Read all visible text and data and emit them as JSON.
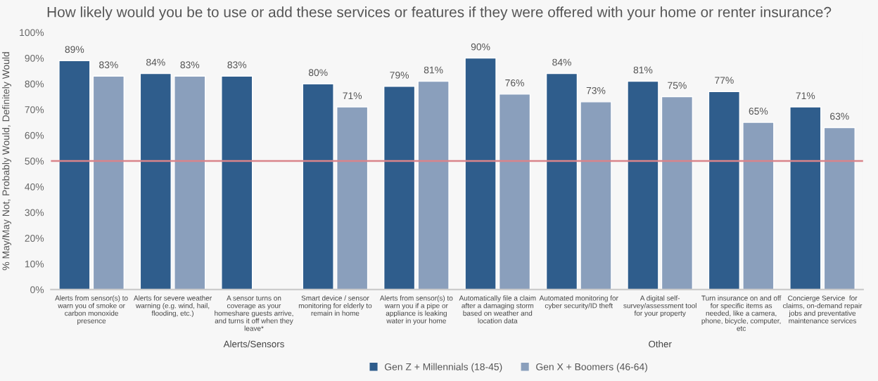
{
  "chart_data": {
    "type": "bar",
    "title": "How likely would you be to use or add these services or features if they were offered with your home or renter insurance?",
    "ylabel": "% May/May Not, Probably Would, Definitely Would",
    "categories": [
      "Alerts from sensor(s) to\nwarn you of smoke or\ncarbon monoxide\npresence",
      "Alerts for severe weather\nwarning (e.g. wind, hail,\nflooding, etc.)",
      "A sensor turns on\ncoverage as your\nhomeshare guests arrive,\nand turns it off when they\nleave*",
      "Smart device / sensor\nmonitoring for elderly to\nremain in home",
      "Alerts from sensor(s) to\nwarn you if a pipe or\nappliance is leaking\nwater in your home",
      "Automatically file a claim\nafter a damaging storm\nbased on weather and\nlocation data",
      "Automated monitoring for\ncyber security/ID theft",
      "A digital self-\nsurvey/assessment tool\nfor your property",
      "Turn insurance on and off\nfor specific items as\nneeded, like a camera,\nphone, bicycle, computer,\netc",
      "Concierge Service  for\nclaims, on-demand repair\njobs and preventative\nmaintenance services"
    ],
    "series": [
      {
        "name": "Gen Z + Millennials (18-45)",
        "color": "#2f5d8c",
        "values": [
          89,
          84,
          83,
          80,
          79,
          90,
          84,
          81,
          77,
          71
        ],
        "value_labels": [
          "89%",
          "84%",
          "83%",
          "80%",
          "79%",
          "90%",
          "84%",
          "81%",
          "77%",
          "71%"
        ]
      },
      {
        "name": "Gen X + Boomers (46-64)",
        "color": "#8a9fbc",
        "values": [
          83,
          83,
          null,
          71,
          81,
          76,
          73,
          75,
          65,
          63
        ],
        "value_labels": [
          "83%",
          "83%",
          null,
          "71%",
          "81%",
          "76%",
          "73%",
          "75%",
          "65%",
          "63%"
        ]
      }
    ],
    "ylim": [
      0,
      100
    ],
    "yticks": [
      {
        "value": 0,
        "label": "0%"
      },
      {
        "value": 10,
        "label": "10%"
      },
      {
        "value": 20,
        "label": "20%"
      },
      {
        "value": 30,
        "label": "30%"
      },
      {
        "value": 40,
        "label": "40%"
      },
      {
        "value": 50,
        "label": "50%"
      },
      {
        "value": 60,
        "label": "60%"
      },
      {
        "value": 70,
        "label": "70%"
      },
      {
        "value": 80,
        "label": "80%"
      },
      {
        "value": 90,
        "label": "90%"
      },
      {
        "value": 100,
        "label": "100%"
      }
    ],
    "ref_lines": [
      {
        "axis": "y",
        "value": 50,
        "color": "#d9848a"
      }
    ],
    "annotations": [
      "Alerts/Sensors",
      "Other"
    ],
    "legend": "bottom",
    "grid": false
  }
}
